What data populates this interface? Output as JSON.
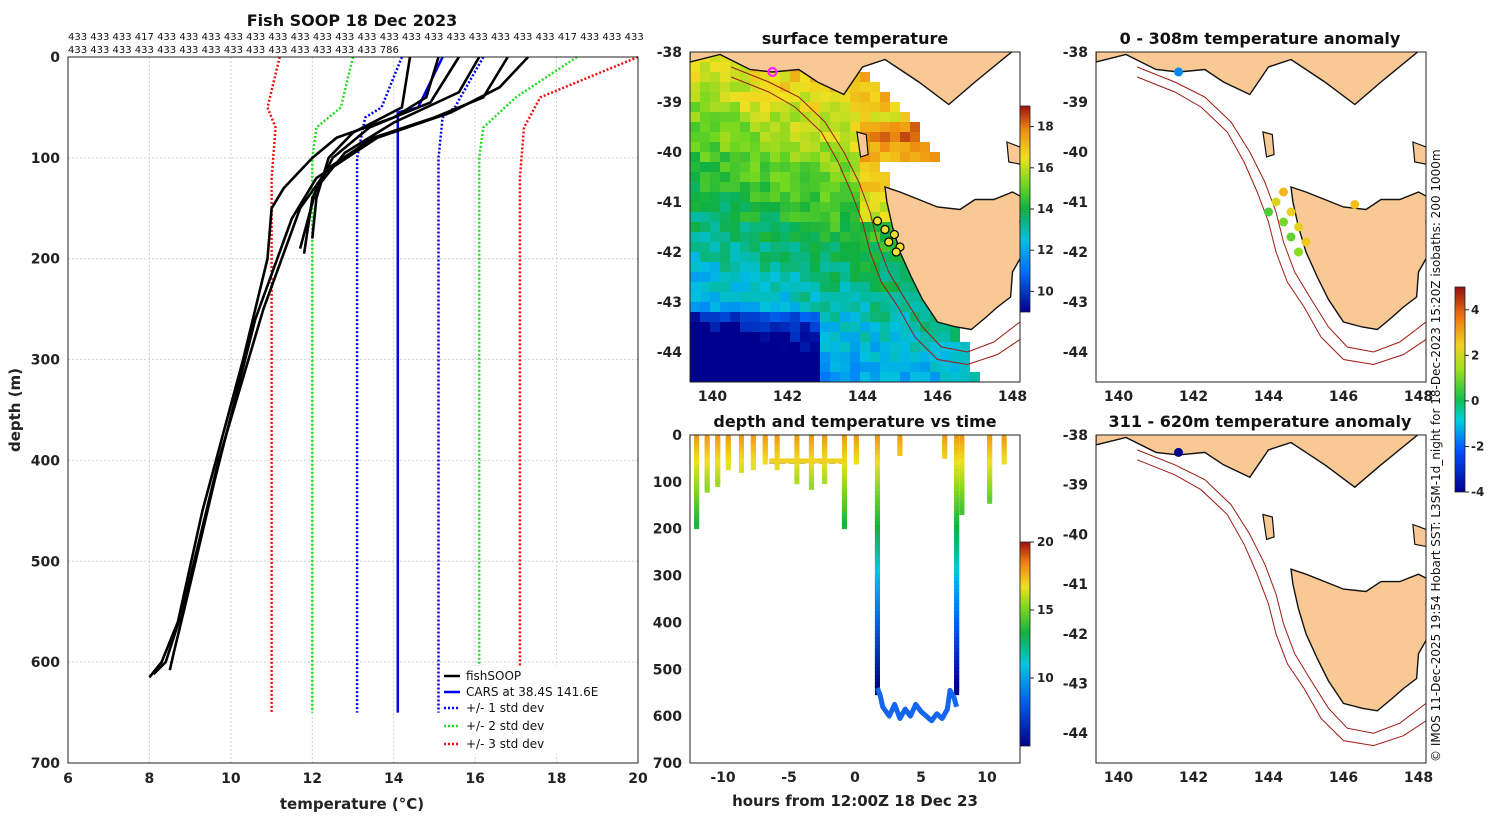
{
  "figure": {
    "colors": {
      "land": "#f9c995",
      "coast": "#111111",
      "isobath": "#9b1b12",
      "fish": "#000000",
      "cars": "#0000ee",
      "std1": "#0000ee",
      "std2": "#22dd22",
      "std3": "#ee1111"
    },
    "side_text": "© IMOS 11-Dec-2025 19:54 Hobart SST: L3SM-1d_night for 18-Dec-2023 15:20Z isobaths: 200  1000m"
  },
  "chart_data": [
    {
      "id": "profile",
      "type": "line",
      "title": "Fish SOOP 18 Dec 2023",
      "xlabel": "temperature (°C)",
      "ylabel": "depth (m)",
      "xlim": [
        6,
        20
      ],
      "ylim": [
        0,
        700
      ],
      "xticks": [
        6,
        8,
        10,
        12,
        14,
        16,
        18,
        20
      ],
      "yticks": [
        0,
        100,
        200,
        300,
        400,
        500,
        600,
        700
      ],
      "top_labels_row1": "433 433 433 417 433 433 433 433 433 433 433 433 433 433 433 433 433 433 433 433 433 433 417 433 433 433",
      "top_labels_row2": "433 433 433 433 433 433 433 433 433 433 433 433 433 433 786",
      "legend": [
        "fishSOOP",
        "CARS at 38.4S 141.6E",
        "+/- 1 std dev",
        "+/- 2 std dev",
        "+/- 3 std dev"
      ],
      "cars": {
        "depth": [
          0,
          50,
          55,
          650
        ],
        "temp": [
          15.2,
          14.6,
          14.1,
          14.1
        ]
      },
      "std1_lo": {
        "depth": [
          0,
          50,
          60,
          100,
          650
        ],
        "temp": [
          14.2,
          13.7,
          13.3,
          13.1,
          13.1
        ]
      },
      "std1_hi": {
        "depth": [
          0,
          50,
          60,
          100,
          650
        ],
        "temp": [
          16.2,
          15.5,
          15.2,
          15.1,
          15.1
        ]
      },
      "std2_lo": {
        "depth": [
          0,
          50,
          70,
          100,
          650
        ],
        "temp": [
          13.0,
          12.7,
          12.1,
          12.0,
          12.0
        ]
      },
      "std2_hi": {
        "depth": [
          0,
          40,
          70,
          100,
          650
        ],
        "temp": [
          18.5,
          17.0,
          16.2,
          16.1,
          16.1
        ]
      },
      "std3_lo": {
        "depth": [
          0,
          50,
          70,
          120,
          650
        ],
        "temp": [
          11.2,
          10.9,
          11.1,
          11.0,
          11.0
        ]
      },
      "std3_hi": {
        "depth": [
          0,
          40,
          70,
          120,
          650
        ],
        "temp": [
          20.0,
          17.6,
          17.2,
          17.1,
          17.1
        ]
      },
      "fish_profiles": [
        {
          "depth": [
            0,
            40,
            60,
            80,
            100,
            130,
            150,
            200,
            300,
            450,
            560,
            600,
            615
          ],
          "temp": [
            15.1,
            14.8,
            14.0,
            12.6,
            12.0,
            11.3,
            11.0,
            10.9,
            10.3,
            9.3,
            8.7,
            8.3,
            8.0
          ]
        },
        {
          "depth": [
            0,
            40,
            60,
            80,
            110,
            150,
            250,
            400,
            550,
            600,
            612
          ],
          "temp": [
            16.8,
            16.2,
            15.0,
            13.5,
            12.4,
            11.7,
            10.8,
            9.7,
            8.8,
            8.4,
            8.1
          ]
        },
        {
          "depth": [
            0,
            30,
            55,
            80,
            120,
            160,
            260,
            420,
            540,
            590,
            608
          ],
          "temp": [
            17.3,
            16.6,
            15.4,
            13.6,
            12.1,
            11.5,
            10.6,
            9.6,
            8.9,
            8.6,
            8.5
          ]
        },
        {
          "depth": [
            0,
            45,
            70,
            100,
            140,
            195
          ],
          "temp": [
            15.6,
            14.9,
            13.4,
            12.5,
            12.0,
            11.8
          ]
        },
        {
          "depth": [
            0,
            35,
            65,
            95,
            130,
            190
          ],
          "temp": [
            16.1,
            15.6,
            14.0,
            12.8,
            12.1,
            11.7
          ]
        },
        {
          "depth": [
            0,
            50,
            75,
            100,
            140,
            180
          ],
          "temp": [
            14.4,
            14.2,
            13.0,
            12.4,
            12.1,
            12.0
          ]
        }
      ]
    },
    {
      "id": "surface",
      "type": "heatmap",
      "title": "surface temperature",
      "xlim": [
        139.4,
        148.2
      ],
      "ylim": [
        -44.6,
        -38
      ],
      "xticks": [
        140,
        142,
        144,
        146,
        148
      ],
      "yticks": [
        -38,
        -39,
        -40,
        -41,
        -42,
        -43,
        -44
      ],
      "colorbar": {
        "min": 9,
        "max": 19,
        "ticks": [
          10,
          12,
          14,
          16,
          18
        ]
      },
      "stations": [
        {
          "lon": 144.4,
          "lat": -41.38
        },
        {
          "lon": 144.6,
          "lat": -41.55
        },
        {
          "lon": 144.85,
          "lat": -41.65
        },
        {
          "lon": 144.7,
          "lat": -41.8
        },
        {
          "lon": 145.0,
          "lat": -41.9
        },
        {
          "lon": 144.9,
          "lat": -42.0
        }
      ],
      "cars_point": {
        "lon": 141.6,
        "lat": -38.4
      }
    },
    {
      "id": "time",
      "type": "scatter",
      "title": "depth and temperature vs time",
      "xlabel": "hours from 12:00Z 18 Dec 23",
      "xlim": [
        -12.5,
        12.5
      ],
      "ylim": [
        0,
        700
      ],
      "xticks": [
        -10,
        -5,
        0,
        5,
        10
      ],
      "yticks": [
        0,
        100,
        200,
        300,
        400,
        500,
        600,
        700
      ],
      "colorbar": {
        "min": 5,
        "max": 20,
        "ticks": [
          10,
          15,
          20
        ]
      },
      "shallow_drops": [
        {
          "t": -12.0,
          "d": 190
        },
        {
          "t": -11.2,
          "d": 110
        },
        {
          "t": -10.4,
          "d": 100
        },
        {
          "t": -9.6,
          "d": 60
        },
        {
          "t": -8.6,
          "d": 70
        },
        {
          "t": -7.7,
          "d": 60
        },
        {
          "t": -6.8,
          "d": 50
        },
        {
          "t": -5.9,
          "d": 60
        },
        {
          "t": -4.4,
          "d": 95
        },
        {
          "t": -3.3,
          "d": 105
        },
        {
          "t": -2.3,
          "d": 95
        },
        {
          "t": -0.8,
          "d": 190
        },
        {
          "t": 0.1,
          "d": 50
        },
        {
          "t": 3.4,
          "d": 35
        },
        {
          "t": 6.8,
          "d": 40
        },
        {
          "t": 8.1,
          "d": 160
        },
        {
          "t": 10.2,
          "d": 135
        },
        {
          "t": 11.3,
          "d": 50
        }
      ],
      "deep_track": {
        "t": [
          1.7,
          1.9,
          2.1,
          2.6,
          3.0,
          3.4,
          3.8,
          4.2,
          4.6,
          5.0,
          5.4,
          5.8,
          6.2,
          6.6,
          7.0,
          7.2,
          7.5,
          7.7
        ],
        "d": [
          540,
          555,
          580,
          600,
          575,
          605,
          585,
          600,
          575,
          590,
          600,
          610,
          595,
          605,
          585,
          545,
          560,
          580
        ]
      }
    },
    {
      "id": "anom1",
      "type": "scatter",
      "title": "0 - 308m temperature anomaly",
      "xlim": [
        139.4,
        148.2
      ],
      "ylim": [
        -44.6,
        -38
      ],
      "xticks": [
        140,
        142,
        144,
        146,
        148
      ],
      "yticks": [
        -38,
        -39,
        -40,
        -41,
        -42,
        -43,
        -44
      ],
      "colorbar": {
        "min": -4,
        "max": 5,
        "ticks": [
          -4,
          -2,
          0,
          2,
          4
        ]
      },
      "points": [
        {
          "lon": 141.6,
          "lat": -38.4,
          "v": -1.6
        },
        {
          "lon": 144.0,
          "lat": -41.2,
          "v": 0.6
        },
        {
          "lon": 144.2,
          "lat": -41.0,
          "v": 2.2
        },
        {
          "lon": 144.4,
          "lat": -40.8,
          "v": 2.8
        },
        {
          "lon": 144.4,
          "lat": -41.4,
          "v": 1.0
        },
        {
          "lon": 144.6,
          "lat": -41.2,
          "v": 2.4
        },
        {
          "lon": 144.6,
          "lat": -41.7,
          "v": 0.8
        },
        {
          "lon": 144.8,
          "lat": -41.5,
          "v": 2.3
        },
        {
          "lon": 144.8,
          "lat": -42.0,
          "v": 1.2
        },
        {
          "lon": 145.0,
          "lat": -41.8,
          "v": 2.6
        },
        {
          "lon": 146.3,
          "lat": -41.05,
          "v": 2.7
        }
      ]
    },
    {
      "id": "anom2",
      "type": "scatter",
      "title": "311 - 620m temperature anomaly",
      "xlim": [
        139.4,
        148.2
      ],
      "ylim": [
        -44.6,
        -38
      ],
      "xticks": [
        140,
        142,
        144,
        146,
        148
      ],
      "yticks": [
        -38,
        -39,
        -40,
        -41,
        -42,
        -43,
        -44
      ],
      "points": [
        {
          "lon": 141.6,
          "lat": -38.35,
          "v": -4.0
        }
      ]
    }
  ]
}
